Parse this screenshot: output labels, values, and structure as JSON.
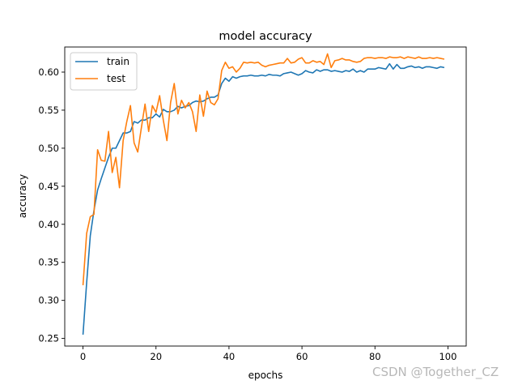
{
  "watermark": "CSDN @Together_CZ",
  "chart_data": {
    "type": "line",
    "title": "model accuracy",
    "xlabel": "epochs",
    "ylabel": "accuracy",
    "xlim": [
      -5,
      105
    ],
    "ylim": [
      0.24,
      0.633
    ],
    "xticks": [
      0,
      20,
      40,
      60,
      80,
      100
    ],
    "xtick_labels": [
      "0",
      "20",
      "40",
      "60",
      "80",
      "100"
    ],
    "yticks": [
      0.25,
      0.3,
      0.35,
      0.4,
      0.45,
      0.5,
      0.55,
      0.6
    ],
    "ytick_labels": [
      "0.25",
      "0.30",
      "0.35",
      "0.40",
      "0.45",
      "0.50",
      "0.55",
      "0.60"
    ],
    "grid": false,
    "legend_position": "top-left",
    "series": [
      {
        "name": "train",
        "color": "#1f77b4",
        "x": [
          0,
          1,
          2,
          3,
          4,
          5,
          6,
          7,
          8,
          9,
          10,
          11,
          12,
          13,
          14,
          15,
          16,
          17,
          18,
          19,
          20,
          21,
          22,
          23,
          24,
          25,
          26,
          27,
          28,
          29,
          30,
          31,
          32,
          33,
          34,
          35,
          36,
          37,
          38,
          39,
          40,
          41,
          42,
          43,
          44,
          45,
          46,
          47,
          48,
          49,
          50,
          51,
          52,
          53,
          54,
          55,
          56,
          57,
          58,
          59,
          60,
          61,
          62,
          63,
          64,
          65,
          66,
          67,
          68,
          69,
          70,
          71,
          72,
          73,
          74,
          75,
          76,
          77,
          78,
          79,
          80,
          81,
          82,
          83,
          84,
          85,
          86,
          87,
          88,
          89,
          90,
          91,
          92,
          93,
          94,
          95,
          96,
          97,
          98,
          99
        ],
        "values": [
          0.255,
          0.323,
          0.385,
          0.418,
          0.445,
          0.46,
          0.474,
          0.488,
          0.5,
          0.5,
          0.51,
          0.52,
          0.52,
          0.522,
          0.535,
          0.533,
          0.537,
          0.537,
          0.54,
          0.54,
          0.545,
          0.541,
          0.551,
          0.548,
          0.548,
          0.55,
          0.555,
          0.553,
          0.555,
          0.556,
          0.56,
          0.562,
          0.561,
          0.562,
          0.565,
          0.567,
          0.567,
          0.57,
          0.585,
          0.592,
          0.588,
          0.594,
          0.592,
          0.594,
          0.595,
          0.595,
          0.596,
          0.595,
          0.595,
          0.596,
          0.595,
          0.597,
          0.596,
          0.596,
          0.595,
          0.598,
          0.599,
          0.6,
          0.598,
          0.596,
          0.598,
          0.602,
          0.6,
          0.599,
          0.603,
          0.601,
          0.603,
          0.603,
          0.601,
          0.602,
          0.601,
          0.6,
          0.602,
          0.601,
          0.604,
          0.6,
          0.602,
          0.6,
          0.604,
          0.604,
          0.604,
          0.606,
          0.605,
          0.604,
          0.611,
          0.604,
          0.61,
          0.605,
          0.605,
          0.607,
          0.608,
          0.606,
          0.607,
          0.605,
          0.607,
          0.607,
          0.606,
          0.605,
          0.607,
          0.606
        ]
      },
      {
        "name": "test",
        "color": "#ff7f0e",
        "x": [
          0,
          1,
          2,
          3,
          4,
          5,
          6,
          7,
          8,
          9,
          10,
          11,
          12,
          13,
          14,
          15,
          16,
          17,
          18,
          19,
          20,
          21,
          22,
          23,
          24,
          25,
          26,
          27,
          28,
          29,
          30,
          31,
          32,
          33,
          34,
          35,
          36,
          37,
          38,
          39,
          40,
          41,
          42,
          43,
          44,
          45,
          46,
          47,
          48,
          49,
          50,
          51,
          52,
          53,
          54,
          55,
          56,
          57,
          58,
          59,
          60,
          61,
          62,
          63,
          64,
          65,
          66,
          67,
          68,
          69,
          70,
          71,
          72,
          73,
          74,
          75,
          76,
          77,
          78,
          79,
          80,
          81,
          82,
          83,
          84,
          85,
          86,
          87,
          88,
          89,
          90,
          91,
          92,
          93,
          94,
          95,
          96,
          97,
          98,
          99
        ],
        "values": [
          0.32,
          0.388,
          0.41,
          0.413,
          0.498,
          0.484,
          0.483,
          0.522,
          0.468,
          0.488,
          0.448,
          0.51,
          0.535,
          0.556,
          0.507,
          0.495,
          0.527,
          0.558,
          0.522,
          0.556,
          0.547,
          0.569,
          0.537,
          0.51,
          0.56,
          0.585,
          0.545,
          0.563,
          0.553,
          0.56,
          0.548,
          0.522,
          0.57,
          0.542,
          0.575,
          0.56,
          0.557,
          0.565,
          0.602,
          0.613,
          0.605,
          0.607,
          0.6,
          0.605,
          0.613,
          0.612,
          0.613,
          0.612,
          0.613,
          0.609,
          0.607,
          0.609,
          0.61,
          0.611,
          0.612,
          0.612,
          0.618,
          0.612,
          0.613,
          0.617,
          0.619,
          0.612,
          0.612,
          0.615,
          0.613,
          0.614,
          0.61,
          0.624,
          0.606,
          0.615,
          0.616,
          0.618,
          0.616,
          0.616,
          0.614,
          0.613,
          0.614,
          0.618,
          0.619,
          0.619,
          0.618,
          0.619,
          0.619,
          0.618,
          0.62,
          0.619,
          0.619,
          0.62,
          0.618,
          0.62,
          0.619,
          0.618,
          0.62,
          0.618,
          0.618,
          0.619,
          0.618,
          0.619,
          0.618,
          0.617
        ]
      }
    ]
  }
}
